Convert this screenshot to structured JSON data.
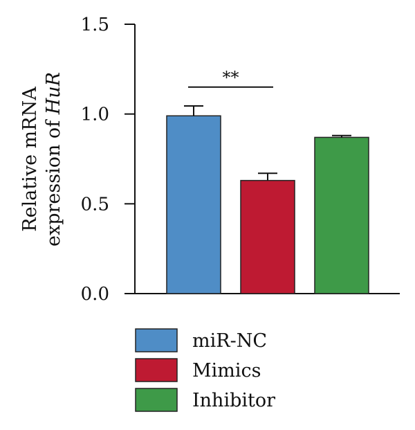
{
  "chart_data": {
    "type": "bar",
    "categories": [
      "miR-NC",
      "Mimics",
      "Inhibitor"
    ],
    "values": [
      0.99,
      0.63,
      0.87
    ],
    "errors": [
      0.055,
      0.04,
      0.01
    ],
    "colors": [
      "#4F8DC6",
      "#BE1A32",
      "#3E9A48"
    ],
    "ylabel_line1": "Relative mRNA",
    "ylabel_line2_prefix": "expression of ",
    "ylabel_gene": "HuR",
    "ylim": [
      0,
      1.5
    ],
    "yticks": [
      "0.0",
      "0.5",
      "1.0",
      "1.5"
    ],
    "significance": {
      "label": "**",
      "between": [
        "miR-NC",
        "Mimics"
      ]
    },
    "legend": [
      "miR-NC",
      "Mimics",
      "Inhibitor"
    ]
  }
}
